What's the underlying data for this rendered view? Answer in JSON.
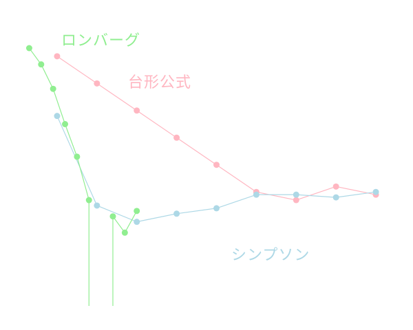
{
  "chart_data": {
    "type": "line",
    "title": "",
    "xlabel": "",
    "ylabel": "",
    "axes_visible": false,
    "grid": false,
    "legend": "labels placed next to each series",
    "xlim": [
      0.5,
      9.5
    ],
    "ylim": [
      -10.6,
      -1.1
    ],
    "series": [
      {
        "name": "台形公式",
        "color": "#ffb6c1",
        "x": [
          1,
          2,
          3,
          4,
          5,
          6,
          7,
          8,
          9
        ],
        "y": [
          -1.4,
          -2.4,
          -3.4,
          -4.4,
          -5.4,
          -6.4,
          -6.7,
          -6.2,
          -6.5
        ]
      },
      {
        "name": "シンプソン",
        "color": "#add8e6",
        "x": [
          1,
          2,
          3,
          4,
          5,
          6,
          7,
          8,
          9
        ],
        "y": [
          -3.6,
          -6.9,
          -7.5,
          -7.2,
          -7.0,
          -6.5,
          -6.5,
          -6.6,
          -6.4
        ]
      },
      {
        "name": "ロンバーグ",
        "color": "#90ee90",
        "x": [
          0.3,
          0.6,
          0.9,
          1.2,
          1.5,
          1.8,
          2.1,
          2.4,
          2.7,
          3.0
        ],
        "y": [
          -1.1,
          -1.7,
          -2.6,
          -3.9,
          -5.1,
          -6.7,
          -15,
          -7.3,
          -7.9,
          -7.1
        ]
      }
    ]
  }
}
